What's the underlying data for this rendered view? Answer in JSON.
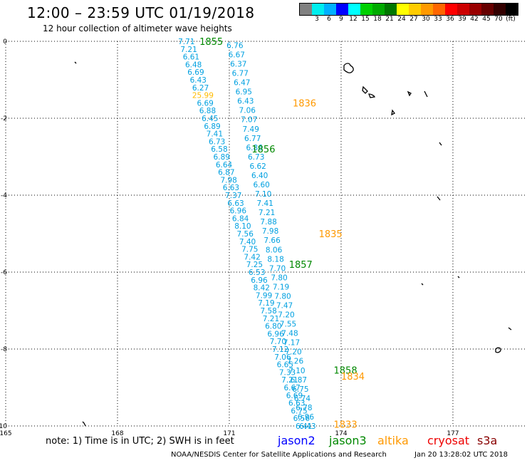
{
  "title": "12:00 – 23:59 UTC 01/19/2018",
  "subtitle": "12 hour collection of altimeter wave heights",
  "scale": {
    "colors": [
      "#808080",
      "#00eeee",
      "#00b0ff",
      "#0000ff",
      "#00ffff",
      "#00d000",
      "#00aa00",
      "#007700",
      "#ffff00",
      "#ffcc00",
      "#ff9900",
      "#ff6600",
      "#ff0000",
      "#cc0000",
      "#990000",
      "#660000",
      "#330000",
      "#000000"
    ],
    "labels": [
      "3",
      "6",
      "9",
      "12",
      "15",
      "18",
      "21",
      "24",
      "27",
      "30",
      "33",
      "36",
      "39",
      "42",
      "45",
      "70",
      "(ft)"
    ],
    "label_after_swatch": [
      1,
      2,
      3,
      4,
      5,
      6,
      7,
      8,
      9,
      10,
      11,
      12,
      13,
      14,
      15,
      16,
      17
    ]
  },
  "axes": {
    "x_ticks": [
      "165",
      "168",
      "171",
      "174",
      "177"
    ],
    "x_values": [
      165,
      168,
      171,
      174,
      177
    ],
    "y_ticks": [
      "0",
      "-2",
      "-4",
      "-6",
      "-8",
      "-10"
    ],
    "y_values": [
      0,
      -2,
      -4,
      -6,
      -8,
      -10
    ],
    "x_range": [
      165,
      179
    ],
    "y_range": [
      -10,
      0
    ]
  },
  "colors": {
    "jason2": "#0000ff",
    "jason3": "#008800",
    "altika": "#ff9900",
    "cryosat": "#ee0000",
    "s3a": "#880000",
    "swh": "#00a0e0",
    "swh_alt": "#ffbb00"
  },
  "track_a_values": [
    "7.71",
    "7.21",
    "6.61",
    "6.48",
    "6.69",
    "6.43",
    "6.27",
    "25.99",
    "6.69",
    "6.88",
    "6.45",
    "6.89",
    "7.41",
    "6.73",
    "6.58",
    "6.89",
    "6.64",
    "6.87",
    "7.98",
    "6.63",
    "7.37",
    "6.63",
    "6.96",
    "6.84",
    "8.10",
    "7.56",
    "7.40",
    "7.75",
    "7.42",
    "7.25",
    "6.53",
    "6.96",
    "8.42",
    "7.99",
    "7.19",
    "7.58",
    "7.21",
    "6.80",
    "6.96",
    "7.70",
    "7.12",
    "7.06",
    "6.65",
    "7.33",
    "7.21",
    "6.67",
    "6.69",
    "6.63",
    "6.75",
    "6.56",
    "6.41"
  ],
  "track_b_values": [
    "6.76",
    "6.67",
    "6.37",
    "6.77",
    "6.47",
    "6.95",
    "6.43",
    "7.06",
    "7.07",
    "7.49",
    "6.77",
    "6.86",
    "6.73",
    "6.62",
    "6.40",
    "6.60",
    "7.10",
    "7.41",
    "7.21",
    "7.88",
    "7.98",
    "7.66",
    "8.06",
    "8.18",
    "7.70",
    "7.80",
    "7.19",
    "7.80",
    "7.47",
    "7.20",
    "7.55",
    "7.48",
    "7.17",
    "7.20",
    "7.26",
    "7.10",
    "6.87",
    "6.75",
    "6.74",
    "6.78",
    "6.96",
    "6.43"
  ],
  "highlight_value_index": 7,
  "time_labels": [
    {
      "text": "1855",
      "lon": 170.2,
      "lat": 0.0,
      "color": "jason3"
    },
    {
      "text": "1836",
      "lon": 172.7,
      "lat": -1.6,
      "color": "altika"
    },
    {
      "text": "1856",
      "lon": 171.6,
      "lat": -2.8,
      "color": "jason3"
    },
    {
      "text": "1835",
      "lon": 173.4,
      "lat": -5.0,
      "color": "altika"
    },
    {
      "text": "1857",
      "lon": 172.6,
      "lat": -5.8,
      "color": "jason3"
    },
    {
      "text": "1858",
      "lon": 173.8,
      "lat": -8.55,
      "color": "jason3"
    },
    {
      "text": "1834",
      "lon": 174.0,
      "lat": -8.7,
      "color": "altika"
    },
    {
      "text": "1833",
      "lon": 173.8,
      "lat": -9.95,
      "color": "altika"
    }
  ],
  "note": "note: 1) Time is in UTC; 2) SWH is in feet",
  "satellites": {
    "jason2": "jason2",
    "jason3": "jason3",
    "altika": "altika",
    "cryosat": "cryosat",
    "s3a": "s3a"
  },
  "footer": "NOAA/NESDIS Center for Satellite Applications and Research",
  "footer_time": "Jan 20 13:28:02 UTC 2018"
}
